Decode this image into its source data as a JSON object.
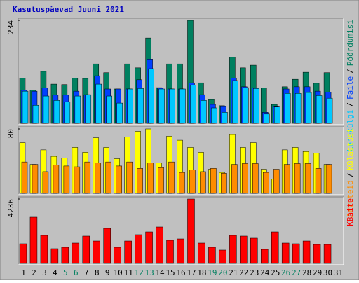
{
  "title": "Kasutuspäevad Juuni 2021",
  "chart_data": [
    {
      "type": "bar",
      "ylim": [
        0,
        234
      ],
      "yticks": [
        234
      ],
      "legend_separator": "/",
      "series": [
        {
          "name": "Pöördumisi",
          "color": "#008060",
          "values": [
            103,
            76,
            118,
            89,
            88,
            103,
            102,
            135,
            115,
            78,
            135,
            126,
            194,
            81,
            135,
            135,
            234,
            92,
            54,
            40,
            150,
            126,
            132,
            80,
            43,
            83,
            100,
            116,
            91,
            115,
            null
          ]
        },
        {
          "name": "Faile",
          "color": "#0040ff",
          "values": [
            76,
            73,
            80,
            64,
            64,
            73,
            65,
            108,
            78,
            78,
            78,
            99,
            146,
            80,
            78,
            78,
            92,
            65,
            43,
            38,
            103,
            83,
            80,
            25,
            38,
            78,
            83,
            83,
            73,
            71,
            null
          ]
        },
        {
          "name": "Lehekülgi",
          "color": "#00c8ff",
          "values": [
            73,
            41,
            62,
            52,
            49,
            62,
            65,
            89,
            62,
            46,
            78,
            79,
            124,
            78,
            78,
            78,
            87,
            52,
            35,
            25,
            97,
            81,
            79,
            21,
            37,
            68,
            68,
            70,
            63,
            57,
            null
          ]
        }
      ]
    },
    {
      "type": "bar",
      "ylim": [
        0,
        80
      ],
      "yticks": [
        80
      ],
      "legend_separator": "/",
      "series": [
        {
          "name": "Külastusi",
          "color": "#ffff00",
          "values": [
            63,
            36,
            54,
            46,
            44,
            57,
            51,
            69,
            57,
            43,
            70,
            77,
            80,
            38,
            71,
            66,
            57,
            51,
            30,
            26,
            73,
            57,
            63,
            30,
            18,
            54,
            57,
            52,
            50,
            36,
            null
          ]
        },
        {
          "name": "Arvuteid",
          "color": "#ff8c00",
          "values": [
            39,
            36,
            27,
            35,
            34,
            33,
            39,
            38,
            39,
            34,
            39,
            31,
            38,
            32,
            39,
            26,
            29,
            27,
            31,
            25,
            36,
            37,
            37,
            26,
            30,
            36,
            37,
            37,
            31,
            36,
            null
          ]
        }
      ]
    },
    {
      "type": "bar",
      "ylim": [
        0,
        4236
      ],
      "yticks": [
        4236
      ],
      "legend_separator": "/",
      "categories": [
        "1",
        "2",
        "3",
        "4",
        "5",
        "6",
        "7",
        "8",
        "9",
        "10",
        "11",
        "12",
        "13",
        "14",
        "15",
        "16",
        "17",
        "18",
        "19",
        "20",
        "21",
        "22",
        "23",
        "24",
        "25",
        "26",
        "27",
        "28",
        "29",
        "30",
        "31"
      ],
      "category_colors": [
        "#000",
        "#000",
        "#000",
        "#000",
        "#008060",
        "#008060",
        "#000",
        "#000",
        "#000",
        "#000",
        "#000",
        "#008060",
        "#008060",
        "#000",
        "#000",
        "#000",
        "#000",
        "#000",
        "#008060",
        "#008060",
        "#000",
        "#000",
        "#000",
        "#000",
        "#000",
        "#008060",
        "#008060",
        "#000",
        "#000",
        "#000",
        "#000"
      ],
      "series": [
        {
          "name": "KBaite",
          "color": "#ff0000",
          "values": [
            1289,
            3039,
            1842,
            967,
            1059,
            1335,
            1796,
            1473,
            2302,
            1059,
            1473,
            1888,
            2072,
            2394,
            1519,
            1611,
            4236,
            1335,
            1059,
            875,
            1842,
            1796,
            1658,
            921,
            2072,
            1335,
            1289,
            1473,
            1243,
            1243,
            null
          ]
        }
      ]
    }
  ]
}
